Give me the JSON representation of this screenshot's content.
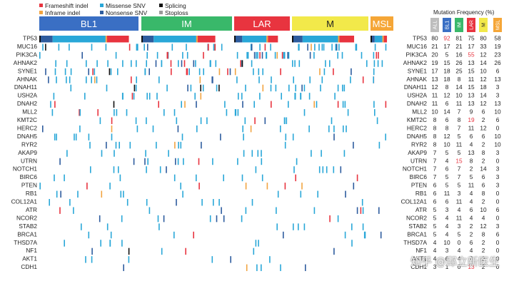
{
  "legend": [
    {
      "label": "Frameshift indel",
      "color": "#e8343f"
    },
    {
      "label": "Inframe indel",
      "color": "#f2a441"
    },
    {
      "label": "Missense SNV",
      "color": "#29a7d8"
    },
    {
      "label": "Nonsense SNV",
      "color": "#2e5c9e"
    },
    {
      "label": "Splicing",
      "color": "#111111"
    },
    {
      "label": "Stoploss",
      "color": "#9a9a9a"
    }
  ],
  "subtypes": [
    {
      "label": "BL1",
      "color": "#3a6fc4"
    },
    {
      "label": "IM",
      "color": "#39b86a"
    },
    {
      "label": "LAR",
      "color": "#e8343f"
    },
    {
      "label": "M",
      "color": "#f2e94a"
    },
    {
      "label": "MSL",
      "color": "#f5a637"
    }
  ],
  "freq_title": "Mutation Frequency (%)",
  "freq_columns": [
    {
      "label": "ALL",
      "color": "#bdbdbd"
    },
    {
      "label": "BL1",
      "color": "#3a6fc4"
    },
    {
      "label": "IM",
      "color": "#39b86a"
    },
    {
      "label": "LAR",
      "color": "#e8343f"
    },
    {
      "label": "M",
      "color": "#f2e94a"
    },
    {
      "label": "MSL",
      "color": "#f5a637"
    }
  ],
  "chart_data": {
    "type": "heatmap",
    "title": "Mutation Frequency (%)",
    "genes": [
      "TP53",
      "MUC16",
      "PIK3CA",
      "AHNAK2",
      "SYNE1",
      "AHNAK",
      "DNAH11",
      "USH2A",
      "DNAH2",
      "MLL2",
      "KMT2C",
      "HERC2",
      "DNAH5",
      "RYR2",
      "AKAP9",
      "UTRN",
      "NOTCH1",
      "BIRC6",
      "PTEN",
      "RB1",
      "COL12A1",
      "ATR",
      "NCOR2",
      "STAB2",
      "BRCA1",
      "THSD7A",
      "NF1",
      "AKT1",
      "CDH1"
    ],
    "columns": [
      "ALL",
      "BL1",
      "IM",
      "LAR",
      "M",
      "MSL"
    ],
    "values": [
      [
        80,
        92,
        81,
        75,
        80,
        58
      ],
      [
        21,
        17,
        21,
        17,
        33,
        19
      ],
      [
        20,
        5,
        16,
        55,
        12,
        23
      ],
      [
        19,
        15,
        26,
        13,
        14,
        26
      ],
      [
        17,
        18,
        25,
        15,
        10,
        6
      ],
      [
        13,
        18,
        8,
        11,
        12,
        13
      ],
      [
        12,
        8,
        14,
        15,
        18,
        3
      ],
      [
        11,
        12,
        10,
        13,
        14,
        3
      ],
      [
        11,
        6,
        11,
        13,
        12,
        13
      ],
      [
        10,
        14,
        7,
        9,
        6,
        10
      ],
      [
        8,
        6,
        8,
        19,
        2,
        6
      ],
      [
        8,
        8,
        7,
        11,
        12,
        0
      ],
      [
        8,
        12,
        5,
        6,
        6,
        10
      ],
      [
        8,
        10,
        11,
        4,
        2,
        10
      ],
      [
        7,
        5,
        5,
        13,
        8,
        3
      ],
      [
        7,
        4,
        15,
        8,
        2,
        0
      ],
      [
        7,
        6,
        7,
        2,
        14,
        3
      ],
      [
        7,
        5,
        7,
        5,
        6,
        3
      ],
      [
        6,
        5,
        5,
        11,
        6,
        3
      ],
      [
        6,
        11,
        3,
        4,
        8,
        0
      ],
      [
        6,
        6,
        11,
        4,
        2,
        0
      ],
      [
        5,
        3,
        4,
        6,
        10,
        6
      ],
      [
        5,
        4,
        11,
        4,
        4,
        0
      ],
      [
        5,
        4,
        3,
        2,
        12,
        3
      ],
      [
        5,
        4,
        5,
        2,
        8,
        6
      ],
      [
        4,
        10,
        0,
        6,
        2,
        0
      ],
      [
        4,
        3,
        4,
        4,
        2,
        0
      ],
      [
        4,
        6,
        4,
        2,
        0,
        0
      ],
      [
        3,
        1,
        0,
        13,
        2,
        0
      ]
    ],
    "highlighted_cells": [
      [
        0,
        1
      ],
      [
        2,
        3
      ],
      [
        10,
        3
      ],
      [
        15,
        2
      ],
      [
        28,
        3
      ]
    ],
    "highlight_color": "#e8343f",
    "subtype_sample_fraction": {
      "BL1": 0.27,
      "IM": 0.23,
      "LAR": 0.14,
      "M": 0.2,
      "MSL": 0.05
    }
  }
}
